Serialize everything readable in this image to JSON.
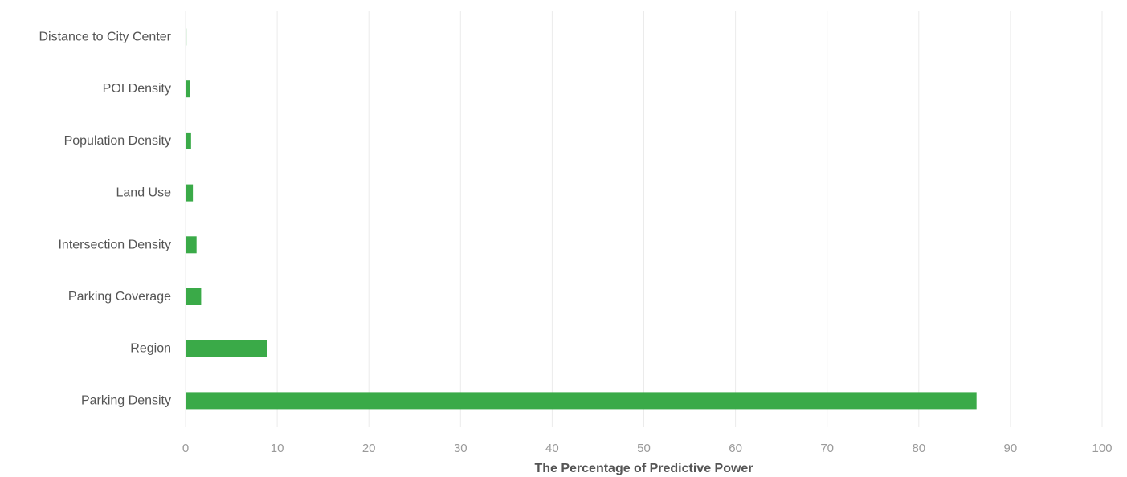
{
  "chart_data": {
    "type": "bar",
    "orientation": "horizontal",
    "categories": [
      "Distance to City Center",
      "POI Density",
      "Population Density",
      "Land Use",
      "Intersection Density",
      "Parking Coverage",
      "Region",
      "Parking Density"
    ],
    "values": [
      0.1,
      0.5,
      0.6,
      0.8,
      1.2,
      1.7,
      8.9,
      86.3
    ],
    "title": "",
    "xlabel": "The Percentage of Predictive Power",
    "ylabel": "",
    "xlim": [
      0,
      100
    ],
    "xticks": [
      0,
      10,
      20,
      30,
      40,
      50,
      60,
      70,
      80,
      90,
      100
    ],
    "grid": true,
    "legend": "none",
    "bar_color": "#3aaa48"
  }
}
